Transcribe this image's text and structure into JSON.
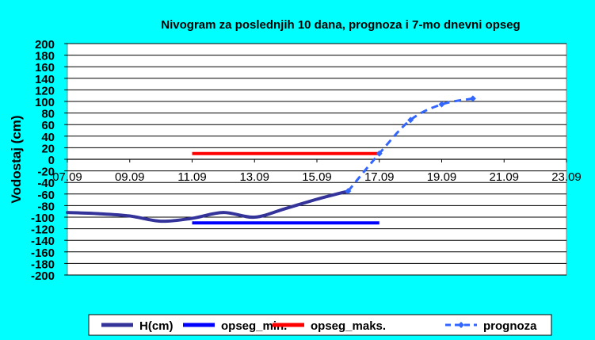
{
  "chart_data": {
    "type": "line",
    "title": "Nivogram za poslednjih 10 dana, prognoza i 7-mo dnevni opseg",
    "ylabel": "Vodostaj (cm)",
    "xlabel": "",
    "ylim": [
      -200,
      200
    ],
    "y_ticks": [
      200,
      180,
      160,
      140,
      120,
      100,
      80,
      60,
      40,
      20,
      0,
      -20,
      -40,
      -60,
      -80,
      -100,
      -120,
      -140,
      -160,
      -180,
      -200
    ],
    "x_tick_labels": [
      "07.09",
      "09.09",
      "11.09",
      "13.09",
      "15.09",
      "17.09",
      "19.09",
      "21.09",
      "23.09"
    ],
    "xlim": [
      0,
      16
    ],
    "grid": "horizontal",
    "legend_position": "bottom",
    "series": [
      {
        "name": "H(cm)",
        "color": "#333399",
        "style": "solid-smooth",
        "points": [
          [
            0,
            -92
          ],
          [
            1,
            -94
          ],
          [
            2,
            -98
          ],
          [
            3,
            -107
          ],
          [
            4,
            -102
          ],
          [
            5,
            -92
          ],
          [
            6,
            -100
          ],
          [
            7,
            -85
          ],
          [
            8,
            -69
          ],
          [
            9,
            -55
          ]
        ]
      },
      {
        "name": "opseg_min.",
        "color": "#0000FF",
        "style": "solid",
        "points": [
          [
            4,
            -110
          ],
          [
            10,
            -110
          ]
        ]
      },
      {
        "name": "opseg_maks.",
        "color": "#FF0000",
        "style": "solid",
        "points": [
          [
            4,
            10
          ],
          [
            10,
            10
          ]
        ]
      },
      {
        "name": "prognoza",
        "color": "#3366FF",
        "style": "dashed-diamond",
        "points": [
          [
            9,
            -55
          ],
          [
            10,
            10
          ],
          [
            11,
            68
          ],
          [
            12,
            95
          ],
          [
            13,
            105
          ]
        ]
      }
    ]
  }
}
